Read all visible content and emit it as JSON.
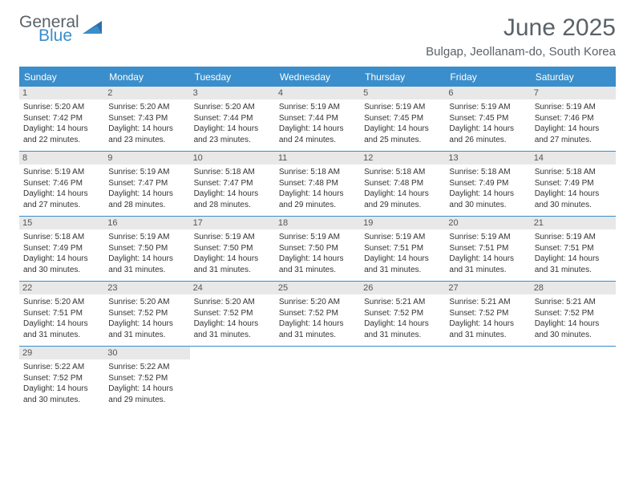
{
  "logo": {
    "line1": "General",
    "line2": "Blue"
  },
  "title": {
    "month": "June 2025",
    "location": "Bulgap, Jeollanam-do, South Korea"
  },
  "colors": {
    "accent": "#3a8ecb",
    "daynum_bg": "#e8e8e8",
    "text": "#333333",
    "header_text": "#5a6268"
  },
  "dayNames": [
    "Sunday",
    "Monday",
    "Tuesday",
    "Wednesday",
    "Thursday",
    "Friday",
    "Saturday"
  ],
  "weeks": [
    [
      {
        "n": "1",
        "sr": "5:20 AM",
        "ss": "7:42 PM",
        "dl": "14 hours and 22 minutes."
      },
      {
        "n": "2",
        "sr": "5:20 AM",
        "ss": "7:43 PM",
        "dl": "14 hours and 23 minutes."
      },
      {
        "n": "3",
        "sr": "5:20 AM",
        "ss": "7:44 PM",
        "dl": "14 hours and 23 minutes."
      },
      {
        "n": "4",
        "sr": "5:19 AM",
        "ss": "7:44 PM",
        "dl": "14 hours and 24 minutes."
      },
      {
        "n": "5",
        "sr": "5:19 AM",
        "ss": "7:45 PM",
        "dl": "14 hours and 25 minutes."
      },
      {
        "n": "6",
        "sr": "5:19 AM",
        "ss": "7:45 PM",
        "dl": "14 hours and 26 minutes."
      },
      {
        "n": "7",
        "sr": "5:19 AM",
        "ss": "7:46 PM",
        "dl": "14 hours and 27 minutes."
      }
    ],
    [
      {
        "n": "8",
        "sr": "5:19 AM",
        "ss": "7:46 PM",
        "dl": "14 hours and 27 minutes."
      },
      {
        "n": "9",
        "sr": "5:19 AM",
        "ss": "7:47 PM",
        "dl": "14 hours and 28 minutes."
      },
      {
        "n": "10",
        "sr": "5:18 AM",
        "ss": "7:47 PM",
        "dl": "14 hours and 28 minutes."
      },
      {
        "n": "11",
        "sr": "5:18 AM",
        "ss": "7:48 PM",
        "dl": "14 hours and 29 minutes."
      },
      {
        "n": "12",
        "sr": "5:18 AM",
        "ss": "7:48 PM",
        "dl": "14 hours and 29 minutes."
      },
      {
        "n": "13",
        "sr": "5:18 AM",
        "ss": "7:49 PM",
        "dl": "14 hours and 30 minutes."
      },
      {
        "n": "14",
        "sr": "5:18 AM",
        "ss": "7:49 PM",
        "dl": "14 hours and 30 minutes."
      }
    ],
    [
      {
        "n": "15",
        "sr": "5:18 AM",
        "ss": "7:49 PM",
        "dl": "14 hours and 30 minutes."
      },
      {
        "n": "16",
        "sr": "5:19 AM",
        "ss": "7:50 PM",
        "dl": "14 hours and 31 minutes."
      },
      {
        "n": "17",
        "sr": "5:19 AM",
        "ss": "7:50 PM",
        "dl": "14 hours and 31 minutes."
      },
      {
        "n": "18",
        "sr": "5:19 AM",
        "ss": "7:50 PM",
        "dl": "14 hours and 31 minutes."
      },
      {
        "n": "19",
        "sr": "5:19 AM",
        "ss": "7:51 PM",
        "dl": "14 hours and 31 minutes."
      },
      {
        "n": "20",
        "sr": "5:19 AM",
        "ss": "7:51 PM",
        "dl": "14 hours and 31 minutes."
      },
      {
        "n": "21",
        "sr": "5:19 AM",
        "ss": "7:51 PM",
        "dl": "14 hours and 31 minutes."
      }
    ],
    [
      {
        "n": "22",
        "sr": "5:20 AM",
        "ss": "7:51 PM",
        "dl": "14 hours and 31 minutes."
      },
      {
        "n": "23",
        "sr": "5:20 AM",
        "ss": "7:52 PM",
        "dl": "14 hours and 31 minutes."
      },
      {
        "n": "24",
        "sr": "5:20 AM",
        "ss": "7:52 PM",
        "dl": "14 hours and 31 minutes."
      },
      {
        "n": "25",
        "sr": "5:20 AM",
        "ss": "7:52 PM",
        "dl": "14 hours and 31 minutes."
      },
      {
        "n": "26",
        "sr": "5:21 AM",
        "ss": "7:52 PM",
        "dl": "14 hours and 31 minutes."
      },
      {
        "n": "27",
        "sr": "5:21 AM",
        "ss": "7:52 PM",
        "dl": "14 hours and 31 minutes."
      },
      {
        "n": "28",
        "sr": "5:21 AM",
        "ss": "7:52 PM",
        "dl": "14 hours and 30 minutes."
      }
    ],
    [
      {
        "n": "29",
        "sr": "5:22 AM",
        "ss": "7:52 PM",
        "dl": "14 hours and 30 minutes."
      },
      {
        "n": "30",
        "sr": "5:22 AM",
        "ss": "7:52 PM",
        "dl": "14 hours and 29 minutes."
      },
      null,
      null,
      null,
      null,
      null
    ]
  ],
  "labels": {
    "sunrise": "Sunrise:",
    "sunset": "Sunset:",
    "daylight": "Daylight:"
  }
}
